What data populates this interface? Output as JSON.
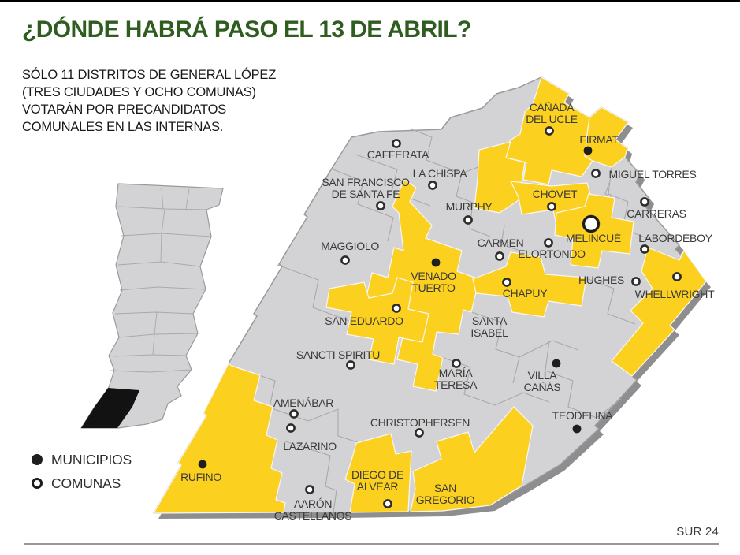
{
  "page": {
    "title": "¿DÓNDE HABRÁ PASO EL 13 DE ABRIL?",
    "subtitle": "SÓLO 11 DISTRITOS DE GENERAL LÓPEZ\n(TRES CIUDADES Y OCHO COMUNAS)\nVOTARÁN POR PRECANDIDATOS\nCOMUNALES EN LAS INTERNAS.",
    "source": "SUR 24"
  },
  "legend": {
    "municipios_label": "MUNICIPIOS",
    "comunas_label": "COMUNAS"
  },
  "colors": {
    "highlight_yellow": "#FCD01E",
    "map_gray": "#D3D3D5",
    "map_border": "#9A9A9C",
    "inner_border": "#A9A9AB",
    "shadow_gray": "#8E8E90",
    "title_green": "#2E5D1F",
    "label_dark": "#3A3A38",
    "marker_black": "#1E1E1C"
  },
  "map": {
    "towns": [
      {
        "name": "Cañada del Ucle",
        "label_lines": [
          "CAÑADA",
          "DEL UCLE"
        ],
        "type": "comuna",
        "highlighted": true,
        "marker": [
          697,
          166
        ],
        "label": [
          700,
          141
        ]
      },
      {
        "name": "Firmat",
        "label_lines": [
          "FIRMAT"
        ],
        "type": "municipio",
        "highlighted": true,
        "marker": [
          746,
          191
        ],
        "label": [
          760,
          182
        ]
      },
      {
        "name": "Miguel Torres",
        "label_lines": [
          "MIGUEL TORRES"
        ],
        "type": "comuna",
        "highlighted": false,
        "marker": [
          756,
          220
        ],
        "label": [
          828,
          226
        ]
      },
      {
        "name": "Cafferata",
        "label_lines": [
          "CAFFERATA"
        ],
        "type": "comuna",
        "highlighted": false,
        "marker": [
          503,
          182
        ],
        "label": [
          505,
          201
        ]
      },
      {
        "name": "La Chispa",
        "label_lines": [
          "LA CHISPA"
        ],
        "type": "comuna",
        "highlighted": false,
        "marker": [
          549,
          235
        ],
        "label": [
          558,
          225
        ]
      },
      {
        "name": "San Francisco de Santa Fe",
        "label_lines": [
          "SAN FRANCISCO",
          "DE SANTA FE"
        ],
        "type": "comuna",
        "highlighted": false,
        "marker": [
          483,
          261
        ],
        "label": [
          464,
          236
        ]
      },
      {
        "name": "Murphy",
        "label_lines": [
          "MURPHY"
        ],
        "type": "comuna",
        "highlighted": false,
        "marker": [
          594,
          279
        ],
        "label": [
          595,
          267
        ]
      },
      {
        "name": "Chovet",
        "label_lines": [
          "CHOVET"
        ],
        "type": "comuna",
        "highlighted": true,
        "marker": [
          700,
          262
        ],
        "label": [
          704,
          251
        ]
      },
      {
        "name": "Carreras",
        "label_lines": [
          "CARRERAS"
        ],
        "type": "comuna",
        "highlighted": false,
        "marker": [
          818,
          256
        ],
        "label": [
          833,
          276
        ]
      },
      {
        "name": "Melincué",
        "label_lines": [
          "MELINCUÉ"
        ],
        "type": "cabecera",
        "highlighted": true,
        "marker": [
          750,
          284
        ],
        "label": [
          753,
          307
        ]
      },
      {
        "name": "Carmen",
        "label_lines": [
          "CARMEN"
        ],
        "type": "comuna",
        "highlighted": false,
        "marker": [
          634,
          325
        ],
        "label": [
          635,
          313
        ]
      },
      {
        "name": "Elortondo",
        "label_lines": [
          "ELORTONDO"
        ],
        "type": "comuna",
        "highlighted": false,
        "marker": [
          696,
          308
        ],
        "label": [
          700,
          327
        ]
      },
      {
        "name": "Labordeboy",
        "label_lines": [
          "LABORDEBOY"
        ],
        "type": "comuna",
        "highlighted": false,
        "marker": [
          818,
          316
        ],
        "label": [
          857,
          307
        ]
      },
      {
        "name": "Maggiolo",
        "label_lines": [
          "MAGGIOLO"
        ],
        "type": "comuna",
        "highlighted": false,
        "marker": [
          438,
          330
        ],
        "label": [
          444,
          317
        ]
      },
      {
        "name": "Venado Tuerto",
        "label_lines": [
          "VENADO",
          "TUERTO"
        ],
        "type": "municipio",
        "highlighted": true,
        "marker": [
          553,
          333
        ],
        "label": [
          550,
          355
        ]
      },
      {
        "name": "Hughes",
        "label_lines": [
          "HUGHES"
        ],
        "type": "comuna",
        "highlighted": false,
        "marker": [
          807,
          357
        ],
        "label": [
          763,
          360
        ]
      },
      {
        "name": "Whellwright",
        "label_lines": [
          "WHELLWRIGHT"
        ],
        "type": "comuna",
        "highlighted": true,
        "marker": [
          859,
          351
        ],
        "label": [
          856,
          378
        ]
      },
      {
        "name": "Chapuy",
        "label_lines": [
          "CHAPUY"
        ],
        "type": "comuna",
        "highlighted": true,
        "marker": [
          643,
          358
        ],
        "label": [
          666,
          377
        ]
      },
      {
        "name": "San Eduardo",
        "label_lines": [
          "SAN EDUARDO"
        ],
        "type": "comuna",
        "highlighted": true,
        "marker": [
          503,
          391
        ],
        "label": [
          462,
          412
        ]
      },
      {
        "name": "Santa Isabel",
        "label_lines": [
          "SANTA",
          "ISABEL"
        ],
        "type": "none",
        "highlighted": false,
        "marker": null,
        "label": [
          621,
          412
        ]
      },
      {
        "name": "Sancti Spiritu",
        "label_lines": [
          "SANCTI SPIRITU"
        ],
        "type": "comuna",
        "highlighted": false,
        "marker": [
          445,
          463
        ],
        "label": [
          429,
          455
        ]
      },
      {
        "name": "María Teresa",
        "label_lines": [
          "MARÍA",
          "TERESA"
        ],
        "type": "comuna",
        "highlighted": false,
        "marker": [
          579,
          461
        ],
        "label": [
          578,
          478
        ]
      },
      {
        "name": "Villa Cañás",
        "label_lines": [
          "VILLA",
          "CAÑÁS"
        ],
        "type": "municipio",
        "highlighted": false,
        "marker": [
          706,
          461
        ],
        "label": [
          688,
          481
        ]
      },
      {
        "name": "Amenábar",
        "label_lines": [
          "AMENÁBAR"
        ],
        "type": "comuna",
        "highlighted": false,
        "marker": [
          373,
          525
        ],
        "label": [
          385,
          516
        ]
      },
      {
        "name": "Teodelina",
        "label_lines": [
          "TEODELINA"
        ],
        "type": "municipio",
        "highlighted": false,
        "marker": [
          732,
          544
        ],
        "label": [
          739,
          532
        ]
      },
      {
        "name": "Christophersen",
        "label_lines": [
          "CHRISTOPHERSEN"
        ],
        "type": "comuna",
        "highlighted": false,
        "marker": [
          532,
          549
        ],
        "label": [
          533,
          541
        ]
      },
      {
        "name": "Lazarino",
        "label_lines": [
          "LAZARINO"
        ],
        "type": "comuna",
        "highlighted": false,
        "marker": [
          369,
          543
        ],
        "label": [
          393,
          571
        ]
      },
      {
        "name": "Rufino",
        "label_lines": [
          "RUFINO"
        ],
        "type": "municipio",
        "highlighted": true,
        "marker": [
          257,
          589
        ],
        "label": [
          255,
          610
        ]
      },
      {
        "name": "Diego de Alvear",
        "label_lines": [
          "DIEGO DE",
          "ALVEAR"
        ],
        "type": "comuna",
        "highlighted": true,
        "marker": [
          492,
          639
        ],
        "label": [
          479,
          607
        ]
      },
      {
        "name": "San Gregorio",
        "label_lines": [
          "SAN",
          "GREGORIO"
        ],
        "type": "none",
        "highlighted": true,
        "marker": null,
        "label": [
          565,
          624
        ]
      },
      {
        "name": "Aarón Castellanos",
        "label_lines": [
          "AARÓN",
          "CASTELLANOS"
        ],
        "type": "comuna",
        "highlighted": false,
        "marker": [
          393,
          621
        ],
        "label": [
          397,
          644
        ]
      }
    ]
  }
}
